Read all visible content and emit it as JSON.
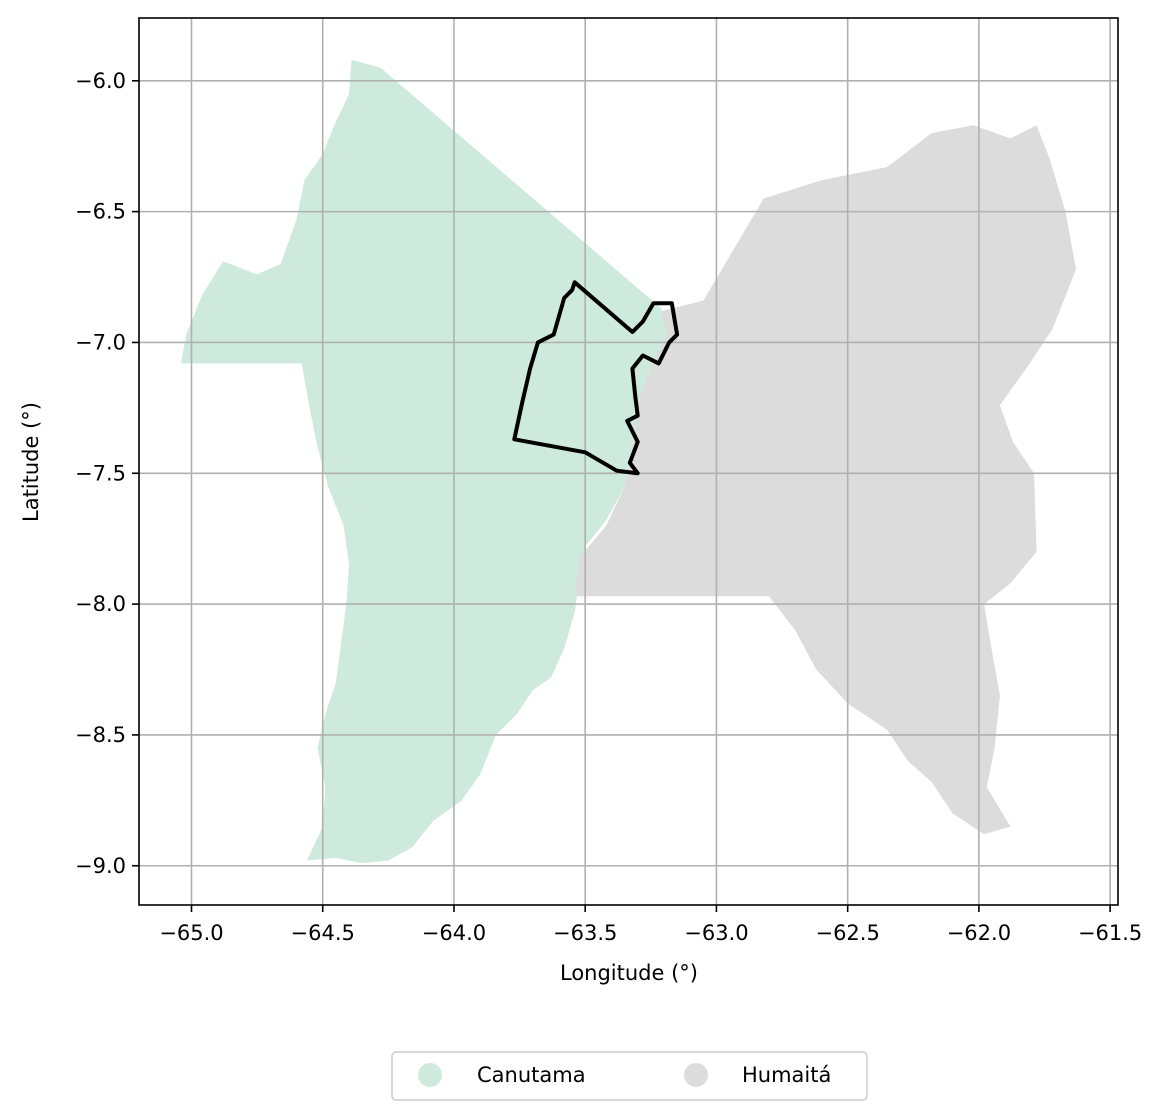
{
  "chart_data": {
    "type": "map",
    "xlabel": "Longitude (°)",
    "ylabel": "Latitude (°)",
    "xlim": [
      -65.2,
      -61.47
    ],
    "ylim": [
      -9.15,
      -5.76
    ],
    "x_ticks": [
      -65.0,
      -64.5,
      -64.0,
      -63.5,
      -63.0,
      -62.5,
      -62.0,
      -61.5
    ],
    "x_tick_labels": [
      "−65.0",
      "−64.5",
      "−64.0",
      "−63.5",
      "−63.0",
      "−62.5",
      "−62.0",
      "−61.5"
    ],
    "y_ticks": [
      -6.0,
      -6.5,
      -7.0,
      -7.5,
      -8.0,
      -8.5,
      -9.0
    ],
    "y_tick_labels": [
      "−6.0",
      "−6.5",
      "−7.0",
      "−7.5",
      "−8.0",
      "−8.5",
      "−9.0"
    ],
    "grid": true,
    "legend_position": "bottom-center",
    "regions": [
      {
        "name": "Canutama",
        "color": "#cdeadd",
        "outline": [
          [
            -64.39,
            -5.92
          ],
          [
            -64.28,
            -5.95
          ],
          [
            -63.21,
            -6.87
          ],
          [
            -63.19,
            -6.97
          ],
          [
            -63.24,
            -7.07
          ],
          [
            -63.29,
            -7.2
          ],
          [
            -63.32,
            -7.38
          ],
          [
            -63.35,
            -7.55
          ],
          [
            -63.42,
            -7.68
          ],
          [
            -63.5,
            -7.78
          ],
          [
            -63.52,
            -7.9
          ],
          [
            -63.54,
            -8.03
          ],
          [
            -63.58,
            -8.17
          ],
          [
            -63.63,
            -8.28
          ],
          [
            -63.7,
            -8.33
          ],
          [
            -63.76,
            -8.42
          ],
          [
            -63.84,
            -8.5
          ],
          [
            -63.9,
            -8.65
          ],
          [
            -63.97,
            -8.75
          ],
          [
            -64.08,
            -8.83
          ],
          [
            -64.16,
            -8.93
          ],
          [
            -64.25,
            -8.98
          ],
          [
            -64.35,
            -8.99
          ],
          [
            -64.45,
            -8.97
          ],
          [
            -64.56,
            -8.98
          ],
          [
            -64.5,
            -8.85
          ],
          [
            -64.49,
            -8.7
          ],
          [
            -64.52,
            -8.55
          ],
          [
            -64.49,
            -8.42
          ],
          [
            -64.45,
            -8.3
          ],
          [
            -64.43,
            -8.15
          ],
          [
            -64.41,
            -8.0
          ],
          [
            -64.4,
            -7.85
          ],
          [
            -64.42,
            -7.7
          ],
          [
            -64.48,
            -7.55
          ],
          [
            -64.52,
            -7.4
          ],
          [
            -64.55,
            -7.25
          ],
          [
            -64.58,
            -7.08
          ],
          [
            -65.04,
            -7.08
          ],
          [
            -65.02,
            -6.97
          ],
          [
            -64.96,
            -6.82
          ],
          [
            -64.88,
            -6.69
          ],
          [
            -64.75,
            -6.74
          ],
          [
            -64.66,
            -6.7
          ],
          [
            -64.6,
            -6.53
          ],
          [
            -64.57,
            -6.38
          ],
          [
            -64.5,
            -6.28
          ],
          [
            -64.46,
            -6.18
          ],
          [
            -64.4,
            -6.05
          ]
        ]
      },
      {
        "name": "Humaitá",
        "color": "#dcdcdc",
        "outline": [
          [
            -63.21,
            -6.88
          ],
          [
            -63.05,
            -6.84
          ],
          [
            -62.92,
            -6.62
          ],
          [
            -62.82,
            -6.45
          ],
          [
            -62.6,
            -6.38
          ],
          [
            -62.35,
            -6.33
          ],
          [
            -62.18,
            -6.2
          ],
          [
            -62.02,
            -6.17
          ],
          [
            -61.88,
            -6.22
          ],
          [
            -61.78,
            -6.17
          ],
          [
            -61.73,
            -6.3
          ],
          [
            -61.67,
            -6.5
          ],
          [
            -61.63,
            -6.72
          ],
          [
            -61.72,
            -6.95
          ],
          [
            -61.82,
            -7.1
          ],
          [
            -61.92,
            -7.24
          ],
          [
            -61.87,
            -7.38
          ],
          [
            -61.79,
            -7.5
          ],
          [
            -61.78,
            -7.8
          ],
          [
            -61.88,
            -7.92
          ],
          [
            -61.98,
            -8.0
          ],
          [
            -61.95,
            -8.18
          ],
          [
            -61.92,
            -8.35
          ],
          [
            -61.94,
            -8.55
          ],
          [
            -61.97,
            -8.7
          ],
          [
            -61.88,
            -8.85
          ],
          [
            -61.98,
            -8.88
          ],
          [
            -62.1,
            -8.8
          ],
          [
            -62.18,
            -8.68
          ],
          [
            -62.27,
            -8.6
          ],
          [
            -62.35,
            -8.48
          ],
          [
            -62.5,
            -8.38
          ],
          [
            -62.62,
            -8.25
          ],
          [
            -62.7,
            -8.1
          ],
          [
            -62.8,
            -7.97
          ],
          [
            -63.54,
            -7.97
          ],
          [
            -63.52,
            -7.82
          ],
          [
            -63.42,
            -7.7
          ],
          [
            -63.35,
            -7.55
          ],
          [
            -63.32,
            -7.38
          ],
          [
            -63.29,
            -7.2
          ],
          [
            -63.24,
            -7.07
          ],
          [
            -63.19,
            -6.97
          ]
        ]
      }
    ],
    "highlight_outline": {
      "color": "#000000",
      "outline": [
        [
          -63.54,
          -6.77
        ],
        [
          -63.32,
          -6.96
        ],
        [
          -63.28,
          -6.92
        ],
        [
          -63.24,
          -6.85
        ],
        [
          -63.17,
          -6.85
        ],
        [
          -63.15,
          -6.97
        ],
        [
          -63.18,
          -7.0
        ],
        [
          -63.22,
          -7.08
        ],
        [
          -63.28,
          -7.05
        ],
        [
          -63.32,
          -7.1
        ],
        [
          -63.31,
          -7.2
        ],
        [
          -63.3,
          -7.28
        ],
        [
          -63.34,
          -7.3
        ],
        [
          -63.3,
          -7.38
        ],
        [
          -63.33,
          -7.46
        ],
        [
          -63.3,
          -7.5
        ],
        [
          -63.38,
          -7.49
        ],
        [
          -63.5,
          -7.42
        ],
        [
          -63.77,
          -7.37
        ],
        [
          -63.74,
          -7.23
        ],
        [
          -63.71,
          -7.1
        ],
        [
          -63.68,
          -7.0
        ],
        [
          -63.62,
          -6.97
        ],
        [
          -63.58,
          -6.83
        ],
        [
          -63.55,
          -6.8
        ]
      ]
    }
  },
  "legend": {
    "items": [
      {
        "label": "Canutama",
        "color": "#cdeadd"
      },
      {
        "label": "Humaitá",
        "color": "#dcdcdc"
      }
    ]
  }
}
